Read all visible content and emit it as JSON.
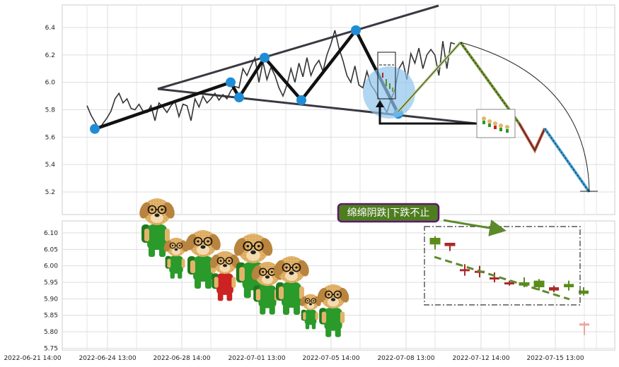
{
  "chart_data": [
    {
      "type": "line",
      "panel": "upper",
      "title": "",
      "xlabel": "",
      "ylabel": "",
      "ylim": [
        5.03,
        6.57
      ],
      "yticks": [
        5.2,
        5.4,
        5.6,
        5.8,
        6.0,
        6.2,
        6.4
      ],
      "grid": true,
      "series": [
        {
          "values": [
            5.83,
            5.76,
            5.71,
            5.66,
            5.7,
            5.74,
            5.79,
            5.88,
            5.92,
            5.85,
            5.88,
            5.81,
            5.8,
            5.84,
            5.79,
            5.78,
            5.83,
            5.72,
            5.85,
            5.82,
            5.78,
            5.83,
            5.86,
            5.75,
            5.84,
            5.83,
            5.72,
            5.88,
            5.82,
            5.9,
            5.85,
            5.88,
            5.92,
            5.87,
            5.91,
            5.88,
            5.94,
            5.97,
            5.96,
            6.1,
            6.05,
            6.12,
            6.18,
            6.0,
            6.15,
            6.02,
            6.11,
            6.05,
            5.96,
            5.9,
            5.98,
            6.1,
            6.0,
            6.14,
            6.04,
            6.18,
            6.05,
            6.12,
            6.16,
            6.08,
            6.2,
            6.28,
            6.38,
            6.25,
            6.16,
            6.05,
            6.0,
            6.12,
            5.98,
            5.96,
            6.08,
            5.98,
            5.94,
            5.88,
            5.83,
            5.78,
            5.87,
            5.95,
            6.1,
            6.15,
            6.02,
            6.21,
            6.14,
            6.25,
            6.1,
            6.2,
            6.24,
            6.2,
            6.05,
            6.3,
            6.1,
            6.29,
            6.28
          ]
        }
      ],
      "pivots": [
        {
          "date": "2022-06-22",
          "value": 5.66
        },
        {
          "date": "2022-06-30",
          "value": 6.0
        },
        {
          "date": "2022-07-01",
          "value": 5.89
        },
        {
          "date": "2022-07-02",
          "value": 6.18
        },
        {
          "date": "2022-07-04",
          "value": 5.87
        },
        {
          "date": "2022-07-05",
          "value": 6.38
        },
        {
          "date": "2022-07-07",
          "value": 5.77
        }
      ]
    },
    {
      "type": "candlestick",
      "panel": "lower",
      "title": "",
      "ylim": [
        5.74,
        6.13
      ],
      "yticks": [
        5.75,
        5.8,
        5.85,
        5.9,
        5.95,
        6.0,
        6.05,
        6.1
      ],
      "grid": true,
      "candles": [
        {
          "open": 6.085,
          "close": 6.065,
          "high": 6.09,
          "low": 6.05,
          "color": "#5b8c1a"
        },
        {
          "open": 6.06,
          "close": 6.07,
          "high": 6.07,
          "low": 6.045,
          "color": "#aa2a2a"
        },
        {
          "open": 5.99,
          "close": 5.99,
          "high": 6.005,
          "low": 5.97,
          "color": "#aa2a2a"
        },
        {
          "open": 5.98,
          "close": 5.985,
          "high": 6.0,
          "low": 5.965,
          "color": "#aa2a2a"
        },
        {
          "open": 5.96,
          "close": 5.965,
          "high": 5.98,
          "low": 5.95,
          "color": "#aa2a2a"
        },
        {
          "open": 5.95,
          "close": 5.945,
          "high": 5.955,
          "low": 5.94,
          "color": "#aa2a2a"
        },
        {
          "open": 5.95,
          "close": 5.94,
          "high": 5.965,
          "low": 5.935,
          "color": "#5b8c1a"
        },
        {
          "open": 5.955,
          "close": 5.935,
          "high": 5.96,
          "low": 5.925,
          "color": "#5b8c1a"
        },
        {
          "open": 5.925,
          "close": 5.935,
          "high": 5.94,
          "low": 5.92,
          "color": "#aa2a2a"
        },
        {
          "open": 5.945,
          "close": 5.935,
          "high": 5.955,
          "low": 5.925,
          "color": "#5b8c1a"
        },
        {
          "open": 5.925,
          "close": 5.915,
          "high": 5.935,
          "low": 5.91,
          "color": "#5b8c1a"
        },
        {
          "open": 5.825,
          "close": 5.82,
          "high": 5.83,
          "low": 5.79,
          "color": "#e8a79a"
        }
      ]
    }
  ],
  "x_axis": {
    "tick_labels": [
      "2022-06-21 14:00",
      "2022-06-24 13:00",
      "2022-06-28 14:00",
      "2022-07-01 13:00",
      "2022-07-05 14:00",
      "2022-07-08 13:00",
      "2022-07-12 14:00",
      "2022-07-15 13:00"
    ]
  },
  "annotation": {
    "text": "绵绵阴跌|下跌不止",
    "box_fill": "#4e7d1f",
    "box_border": "#5a1a6a"
  },
  "colors": {
    "price_line": "#333333",
    "trend_line": "#393942",
    "pivot": "#1f8dd6",
    "rise": "#aa2a2a",
    "fall": "#5b8c1a",
    "forecast_green": "#7a9a3a",
    "forecast_red": "#c2503a",
    "forecast_blue": "#3ea3d8"
  },
  "decorations": {
    "mascot": "cartoon-dog-with-glasses-and-backpack"
  }
}
